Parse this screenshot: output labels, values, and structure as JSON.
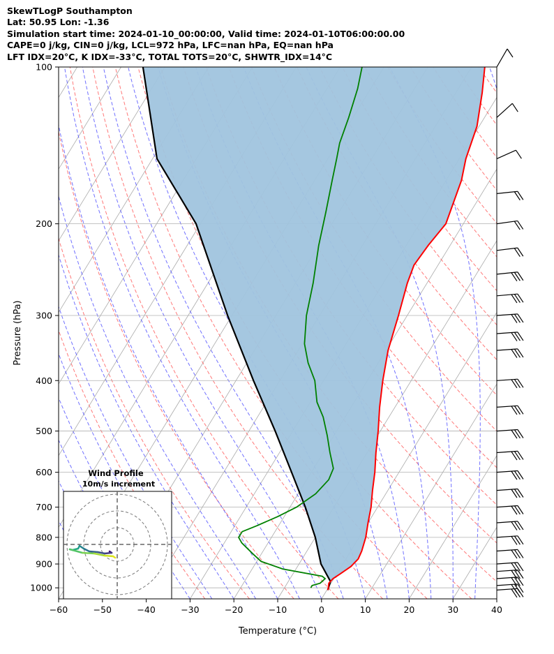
{
  "header": {
    "line1": "SkewTLogP Southampton",
    "line2": "Lat: 50.95   Lon: -1.36",
    "line3": "Simulation start time: 2024-01-10_00:00:00, Valid time: 2024-01-10T06:00:00.00",
    "line4": "CAPE=0 j/kg, CIN=0 j/kg, LCL=972 hPa, LFC=nan hPa, EQ=nan hPa",
    "line5": "LFT IDX=20°C, K IDX=-33°C, TOTAL TOTS=20°C, SHWTR_IDX=14°C"
  },
  "chart_data": [
    {
      "type": "line",
      "title": "SkewTLogP Southampton",
      "xlabel": "Temperature (°C)",
      "ylabel": "Pressure (hPa)",
      "xlim": [
        -60,
        40
      ],
      "ylim": [
        1050,
        100
      ],
      "y_scale": "log",
      "grid": true,
      "x_ticks": [
        -60,
        -50,
        -40,
        -30,
        -20,
        -10,
        0,
        10,
        20,
        30,
        40
      ],
      "x_tick_labels": [
        "−60",
        "−50",
        "−40",
        "−30",
        "−20",
        "−10",
        "0",
        "10",
        "20",
        "30",
        "40"
      ],
      "y_ticks": [
        100,
        200,
        300,
        400,
        500,
        600,
        700,
        800,
        900,
        1000
      ],
      "y_tick_labels": [
        "100",
        "200",
        "300",
        "400",
        "500",
        "600",
        "700",
        "800",
        "900",
        "1000"
      ],
      "colors": {
        "temperature": "#ff0000",
        "dewpoint": "#008000",
        "parcel": "#000000",
        "shade": "#a0c4de",
        "dry_adiabat": "#ff6060",
        "moist_adiabat": "#4040ff",
        "mixing_ratio": "#aaaaaa"
      },
      "series": [
        {
          "key": "temperature",
          "points": [
            [
              0.2,
              1010
            ],
            [
              0.0,
              1000
            ],
            [
              -0.5,
              980
            ],
            [
              -0.2,
              960
            ],
            [
              0.8,
              940
            ],
            [
              2.2,
              910
            ],
            [
              2.8,
              880
            ],
            [
              2.5,
              850
            ],
            [
              1.5,
              800
            ],
            [
              0.0,
              750
            ],
            [
              -1.5,
              700
            ],
            [
              -3.5,
              650
            ],
            [
              -5.5,
              600
            ],
            [
              -8.0,
              550
            ],
            [
              -10.5,
              500
            ],
            [
              -13.5,
              450
            ],
            [
              -16.5,
              400
            ],
            [
              -19.5,
              350
            ],
            [
              -22.0,
              300
            ],
            [
              -24.5,
              260
            ],
            [
              -25.5,
              240
            ],
            [
              -25.0,
              220
            ],
            [
              -24.0,
              200
            ],
            [
              -26.5,
              165
            ],
            [
              -28.5,
              150
            ],
            [
              -30.5,
              130
            ],
            [
              -34.0,
              112
            ],
            [
              -37.0,
              100
            ]
          ]
        },
        {
          "key": "dewpoint",
          "points": [
            [
              -4.0,
              1000
            ],
            [
              -4.0,
              990
            ],
            [
              -2.5,
              980
            ],
            [
              -2.0,
              960
            ],
            [
              -3.0,
              950
            ],
            [
              -13.0,
              920
            ],
            [
              -19.0,
              890
            ],
            [
              -22.0,
              860
            ],
            [
              -26.0,
              820
            ],
            [
              -27.5,
              800
            ],
            [
              -27.5,
              780
            ],
            [
              -25.0,
              760
            ],
            [
              -21.5,
              730
            ],
            [
              -18.5,
              700
            ],
            [
              -16.0,
              660
            ],
            [
              -15.0,
              620
            ],
            [
              -15.5,
              590
            ],
            [
              -18.5,
              550
            ],
            [
              -21.5,
              510
            ],
            [
              -25.0,
              470
            ],
            [
              -28.5,
              440
            ],
            [
              -32.0,
              400
            ],
            [
              -36.0,
              370
            ],
            [
              -39.5,
              340
            ],
            [
              -43.0,
              300
            ],
            [
              -46.0,
              260
            ],
            [
              -50.0,
              220
            ],
            [
              -53.0,
              190
            ],
            [
              -56.0,
              165
            ],
            [
              -58.0,
              150
            ],
            [
              -59.5,
              140
            ],
            [
              -61.0,
              125
            ],
            [
              -63.0,
              110
            ],
            [
              -65.0,
              100
            ]
          ]
        },
        {
          "key": "parcel",
          "points": [
            [
              0.2,
              1010
            ],
            [
              -0.4,
              972
            ],
            [
              -5.0,
              900
            ],
            [
              -10.0,
              800
            ],
            [
              -16.5,
              700
            ],
            [
              -24.5,
              600
            ],
            [
              -34.0,
              500
            ],
            [
              -46.0,
              400
            ],
            [
              -61.0,
              300
            ],
            [
              -81.0,
              200
            ],
            [
              -99.0,
              150
            ],
            [
              -115.0,
              100
            ]
          ]
        }
      ]
    },
    {
      "type": "line",
      "title": "Wind Profile",
      "subtitle": "10m/s increment"
    }
  ]
}
